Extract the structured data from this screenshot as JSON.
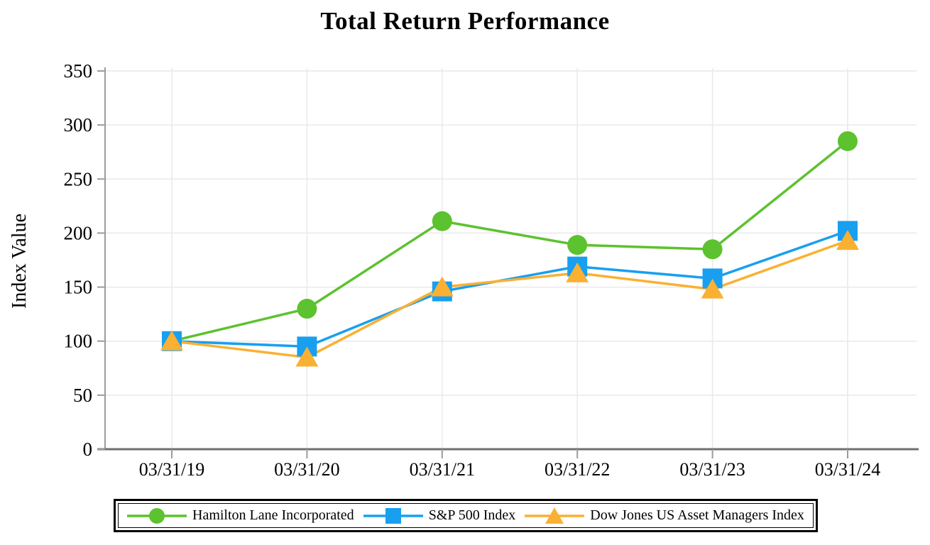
{
  "chart": {
    "title": "Total Return Performance",
    "ylabel": "Index Value"
  },
  "legend": {
    "items": [
      {
        "label": "Hamilton Lane Incorporated",
        "marker": "circle",
        "color": "#5CC22F"
      },
      {
        "label": "S&P 500 Index",
        "marker": "square",
        "color": "#189FF0"
      },
      {
        "label": "Dow Jones US Asset Managers Index",
        "marker": "triangle",
        "color": "#FAB032"
      }
    ]
  },
  "chart_data": {
    "type": "line",
    "title": "Total Return Performance",
    "xlabel": "",
    "ylabel": "Index Value",
    "x": [
      "03/31/19",
      "03/31/20",
      "03/31/21",
      "03/31/22",
      "03/31/23",
      "03/31/24"
    ],
    "series": [
      {
        "name": "Hamilton Lane Incorporated",
        "marker": "circle",
        "color": "#5CC22F",
        "values": [
          100,
          130,
          211,
          189,
          185,
          285
        ]
      },
      {
        "name": "S&P 500 Index",
        "marker": "square",
        "color": "#189FF0",
        "values": [
          100,
          95,
          146,
          169,
          158,
          202
        ]
      },
      {
        "name": "Dow Jones US Asset Managers Index",
        "marker": "triangle",
        "color": "#FAB032",
        "values": [
          100,
          85,
          150,
          163,
          148,
          193
        ]
      }
    ],
    "ylim": [
      0,
      350
    ],
    "yticks": [
      0,
      50,
      100,
      150,
      200,
      250,
      300,
      350
    ],
    "grid": true,
    "legend_position": "bottom",
    "colors": {
      "gridline": "#e9e9e9",
      "y_axis": "#9b9b9b",
      "x_axis": "#6f6f6f",
      "tick_label": "#000000"
    }
  }
}
